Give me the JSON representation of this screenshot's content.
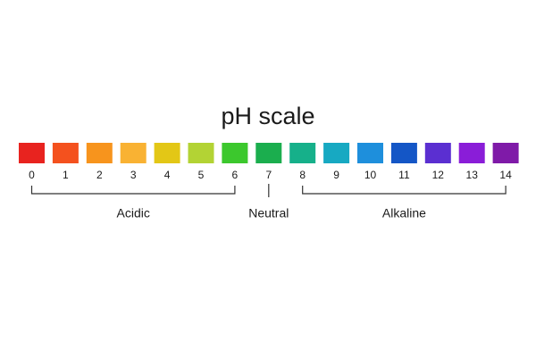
{
  "title": "pH scale",
  "scale": [
    {
      "label": "0",
      "color": "#e8231f"
    },
    {
      "label": "1",
      "color": "#f4511e"
    },
    {
      "label": "2",
      "color": "#f7941d"
    },
    {
      "label": "3",
      "color": "#f9b233"
    },
    {
      "label": "4",
      "color": "#e3c716"
    },
    {
      "label": "5",
      "color": "#b3d334"
    },
    {
      "label": "6",
      "color": "#3cc82d"
    },
    {
      "label": "7",
      "color": "#1bae4e"
    },
    {
      "label": "8",
      "color": "#16b08a"
    },
    {
      "label": "9",
      "color": "#17a9c2"
    },
    {
      "label": "10",
      "color": "#1e8fdc"
    },
    {
      "label": "11",
      "color": "#1456c6"
    },
    {
      "label": "12",
      "color": "#5b2fd1"
    },
    {
      "label": "13",
      "color": "#8a1dd8"
    },
    {
      "label": "14",
      "color": "#7f1aa8"
    }
  ],
  "groups": [
    {
      "label": "Acidic"
    },
    {
      "label": "Neutral"
    },
    {
      "label": "Alkaline"
    }
  ]
}
